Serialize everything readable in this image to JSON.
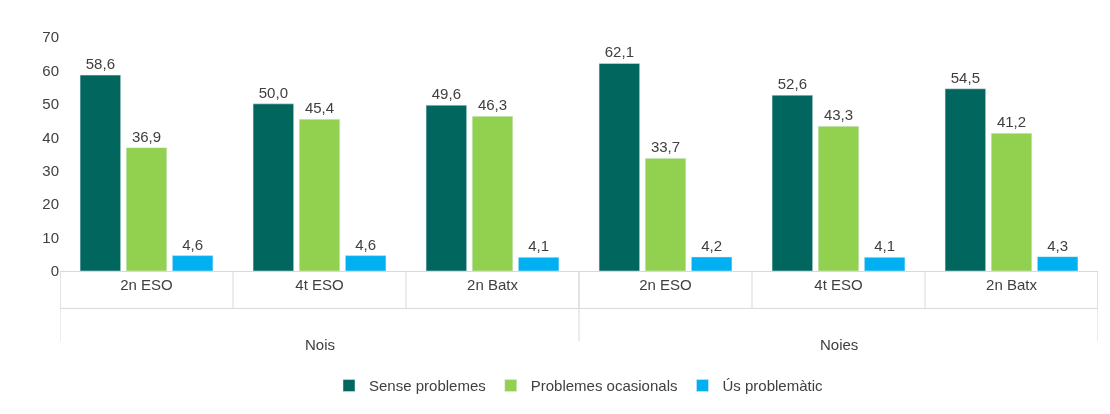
{
  "chart_data": {
    "type": "bar",
    "categories": [
      "2n ESO",
      "4t ESO",
      "2n Batx",
      "2n ESO",
      "4t ESO",
      "2n Batx"
    ],
    "series": [
      {
        "name": "Sense problemes",
        "color": "#00665e",
        "values": [
          58.6,
          50.0,
          49.6,
          62.1,
          52.6,
          54.5
        ],
        "value_labels": [
          "58,6",
          "50,0",
          "49,6",
          "62,1",
          "52,6",
          "54,5"
        ]
      },
      {
        "name": "Problemes ocasionals",
        "color": "#92d050",
        "values": [
          36.9,
          45.4,
          46.3,
          33.7,
          43.3,
          41.2
        ],
        "value_labels": [
          "36,9",
          "45,4",
          "46,3",
          "33,7",
          "43,3",
          "41,2"
        ]
      },
      {
        "name": "Ús problemàtic",
        "color": "#00b0f0",
        "values": [
          4.6,
          4.6,
          4.1,
          4.2,
          4.1,
          4.3
        ],
        "value_labels": [
          "4,6",
          "4,6",
          "4,1",
          "4,2",
          "4,1",
          "4,3"
        ]
      }
    ],
    "annotations": [
      "Nois",
      "Noies"
    ],
    "ylim": [
      0,
      70
    ],
    "yticks": [
      0,
      10,
      20,
      30,
      40,
      50,
      60,
      70
    ],
    "grid": false,
    "legend": "bottom"
  }
}
